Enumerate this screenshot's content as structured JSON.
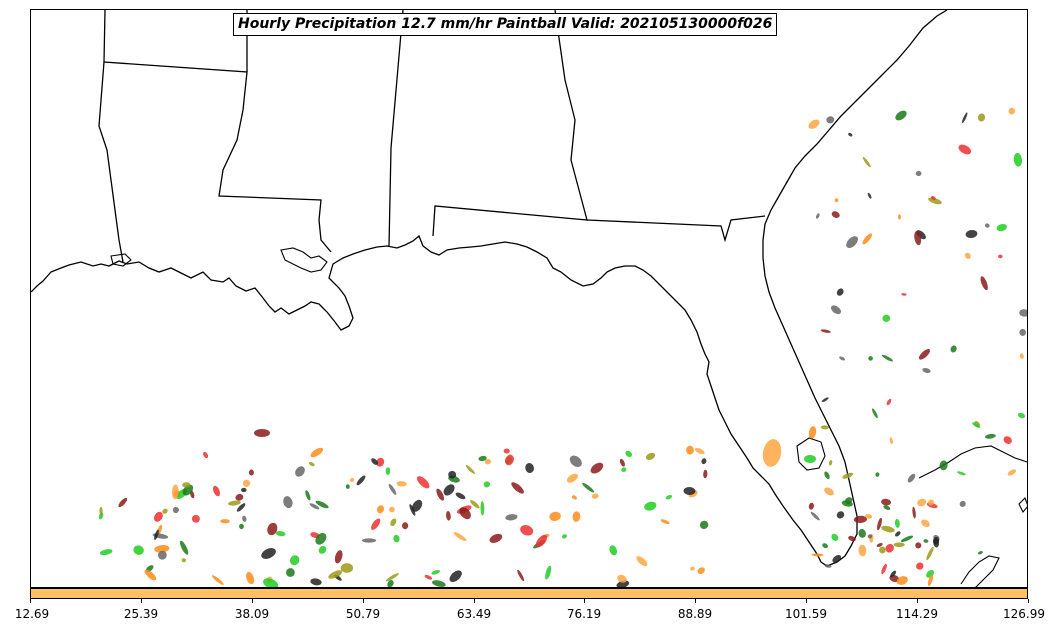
{
  "title": "Hourly Precipitation 12.7 mm/hr Paintball Valid: 202105130000f026",
  "colorbar": {
    "color": "#ffc163",
    "ticks": [
      "12.69",
      "25.39",
      "38.09",
      "50.79",
      "63.49",
      "76.19",
      "88.89",
      "101.59",
      "114.29",
      "126.99"
    ]
  },
  "map": {
    "region": "Gulf of Mexico / Southeastern United States",
    "coastline_color": "#000000",
    "boundary_color": "#000000"
  },
  "paintball_colors": {
    "red": "#ee3030",
    "dark_red": "#8b1a1a",
    "orange": "#ff8c1a",
    "light_orange": "#ffa640",
    "green": "#22cc22",
    "dark_green": "#1a7a1a",
    "olive": "#9a9a1a",
    "black": "#222222",
    "gray": "#666666"
  }
}
